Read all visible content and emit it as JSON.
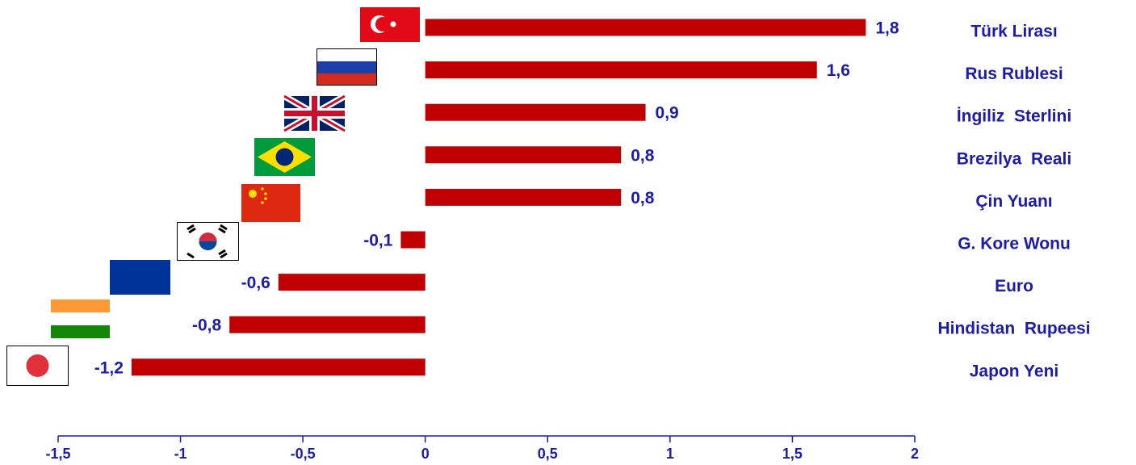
{
  "chart_data": {
    "type": "bar",
    "orientation": "horizontal",
    "categories": [
      "Türk Lirası",
      "Rus Rublesi",
      "İngiliz  Sterlini",
      "Brezilya  Reali",
      "Çin Yuanı",
      "G. Kore Wonu",
      "Euro",
      "Hindistan  Rupeesi",
      "Japon Yeni"
    ],
    "values": [
      1.8,
      1.6,
      0.9,
      0.8,
      0.8,
      -0.1,
      -0.6,
      -0.8,
      -1.2
    ],
    "value_labels": [
      "1,8",
      "1,6",
      "0,9",
      "0,8",
      "0,8",
      "-0,1",
      "-0,6",
      "-0,8",
      "-1,2"
    ],
    "color": "#c00000",
    "xlim": [
      -1.5,
      2
    ],
    "xticks": [
      {
        "value": -1.5,
        "label": "-1,5"
      },
      -1,
      {
        "value": -0.5,
        "label": "-0,5"
      },
      0,
      {
        "value": 0.5,
        "label": "0,5"
      },
      1,
      {
        "value": 1.5,
        "label": "1,5"
      },
      2
    ]
  }
}
